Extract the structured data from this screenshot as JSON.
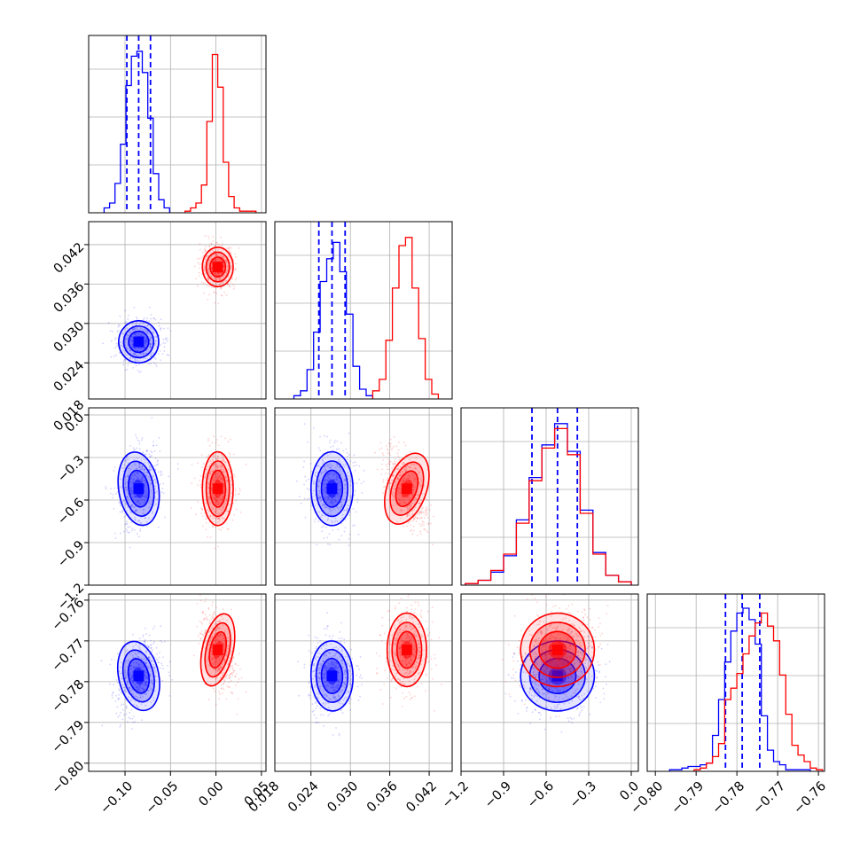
{
  "chart_data": {
    "type": "corner",
    "grid": true,
    "parameters": [
      {
        "id": "p0",
        "range": [
          -0.14,
          0.055
        ],
        "ticks": [
          -0.1,
          -0.05,
          0.0,
          0.05
        ],
        "tick_labels": [
          "−0.10",
          "−0.05",
          "0.00",
          "0.05"
        ]
      },
      {
        "id": "p1",
        "range": [
          0.0185,
          0.0455
        ],
        "ticks": [
          0.018,
          0.024,
          0.03,
          0.036,
          0.042
        ],
        "tick_labels": [
          "0.018",
          "0.024",
          "0.030",
          "0.036",
          "0.042"
        ]
      },
      {
        "id": "p2",
        "range": [
          -1.2,
          0.05
        ],
        "ticks": [
          -1.2,
          -0.9,
          -0.6,
          -0.3,
          0.0
        ],
        "tick_labels": [
          "−1.2",
          "−0.9",
          "−0.6",
          "−0.3",
          "0.0"
        ]
      },
      {
        "id": "p3",
        "range": [
          -0.802,
          -0.7585
        ],
        "ticks": [
          -0.8,
          -0.79,
          -0.78,
          -0.77,
          -0.76
        ],
        "tick_labels": [
          "−0.80",
          "−0.79",
          "−0.78",
          "−0.77",
          "−0.76"
        ]
      }
    ],
    "series": [
      {
        "color": "#0000ff",
        "means": [
          -0.085,
          0.0272,
          -0.52,
          -0.7786
        ],
        "sigmas": [
          0.011,
          0.0016,
          0.13,
          0.0043
        ],
        "quantile_lines": [
          [
            -0.098,
            -0.085,
            -0.072
          ],
          [
            0.0252,
            0.0272,
            0.0292
          ],
          [
            -0.7,
            -0.52,
            -0.38
          ],
          [
            -0.7828,
            -0.7787,
            -0.7744
          ]
        ],
        "histograms": [
          {
            "edges": [
              -0.123,
              -0.117,
              -0.111,
              -0.105,
              -0.099,
              -0.093,
              -0.087,
              -0.081,
              -0.075,
              -0.069,
              -0.063,
              -0.057,
              -0.051
            ],
            "counts": [
              0.03,
              0.06,
              0.18,
              0.42,
              0.78,
              0.96,
              0.99,
              0.86,
              0.58,
              0.24,
              0.08,
              0.03
            ]
          },
          {
            "edges": [
              0.0214,
              0.0224,
              0.0234,
              0.0244,
              0.0254,
              0.0264,
              0.0274,
              0.0284,
              0.0294,
              0.0304,
              0.0314,
              0.0324,
              0.0334
            ],
            "counts": [
              0.02,
              0.05,
              0.18,
              0.41,
              0.72,
              0.86,
              0.96,
              0.78,
              0.52,
              0.2,
              0.06,
              0.02
            ]
          },
          {
            "edges": [
              -1.17,
              -1.08,
              -0.99,
              -0.9,
              -0.81,
              -0.72,
              -0.63,
              -0.54,
              -0.45,
              -0.36,
              -0.27,
              -0.18,
              -0.09,
              0.0
            ],
            "counts": [
              0.01,
              0.03,
              0.08,
              0.18,
              0.4,
              0.66,
              0.86,
              0.99,
              0.82,
              0.46,
              0.2,
              0.06,
              0.02
            ]
          },
          {
            "edges": [
              -0.7965,
              -0.795,
              -0.7935,
              -0.792,
              -0.7905,
              -0.789,
              -0.7875,
              -0.786,
              -0.7845,
              -0.783,
              -0.7815,
              -0.78,
              -0.7785,
              -0.777,
              -0.7755,
              -0.774,
              -0.7725,
              -0.771,
              -0.7695,
              -0.768,
              -0.7665,
              -0.765,
              -0.7635,
              -0.762
            ],
            "counts": [
              0.01,
              0.01,
              0.02,
              0.03,
              0.03,
              0.04,
              0.05,
              0.22,
              0.44,
              0.67,
              0.86,
              0.97,
              1.0,
              0.93,
              0.78,
              0.34,
              0.13,
              0.06,
              0.04,
              0.01,
              0.01,
              0.01,
              0.01
            ]
          }
        ]
      },
      {
        "color": "#ff0000",
        "means": [
          0.002,
          0.0386,
          -0.52,
          -0.7722
        ],
        "sigmas": [
          0.0085,
          0.0015,
          0.13,
          0.0045
        ],
        "quantile_lines": null,
        "histograms": [
          {
            "edges": [
              -0.034,
              -0.028,
              -0.022,
              -0.016,
              -0.01,
              -0.004,
              0.002,
              0.008,
              0.014,
              0.02,
              0.026,
              0.032,
              0.038,
              0.044
            ],
            "counts": [
              0.01,
              0.03,
              0.06,
              0.17,
              0.56,
              0.97,
              0.77,
              0.31,
              0.1,
              0.03,
              0.01,
              0.01,
              0.01
            ]
          },
          {
            "edges": [
              0.0334,
              0.0344,
              0.0354,
              0.0364,
              0.0374,
              0.0384,
              0.0394,
              0.0404,
              0.0414,
              0.0424,
              0.0434
            ],
            "counts": [
              0.05,
              0.12,
              0.36,
              0.68,
              0.94,
              0.99,
              0.68,
              0.37,
              0.12,
              0.03
            ]
          },
          {
            "edges": [
              -1.17,
              -1.08,
              -0.99,
              -0.9,
              -0.81,
              -0.72,
              -0.63,
              -0.54,
              -0.45,
              -0.36,
              -0.27,
              -0.18,
              -0.09,
              0.0
            ],
            "counts": [
              0.01,
              0.03,
              0.09,
              0.19,
              0.38,
              0.64,
              0.84,
              0.96,
              0.8,
              0.44,
              0.19,
              0.06,
              0.02
            ]
          },
          {
            "edges": [
              -0.7905,
              -0.789,
              -0.7875,
              -0.786,
              -0.7845,
              -0.783,
              -0.7815,
              -0.78,
              -0.7785,
              -0.777,
              -0.7755,
              -0.774,
              -0.7725,
              -0.771,
              -0.7695,
              -0.768,
              -0.7665,
              -0.765,
              -0.7635,
              -0.762,
              -0.7605,
              -0.759
            ],
            "counts": [
              0.01,
              0.02,
              0.05,
              0.09,
              0.17,
              0.44,
              0.51,
              0.6,
              0.72,
              0.83,
              0.91,
              0.97,
              0.89,
              0.8,
              0.59,
              0.35,
              0.16,
              0.1,
              0.06,
              0.02,
              0.01
            ]
          }
        ]
      }
    ]
  }
}
